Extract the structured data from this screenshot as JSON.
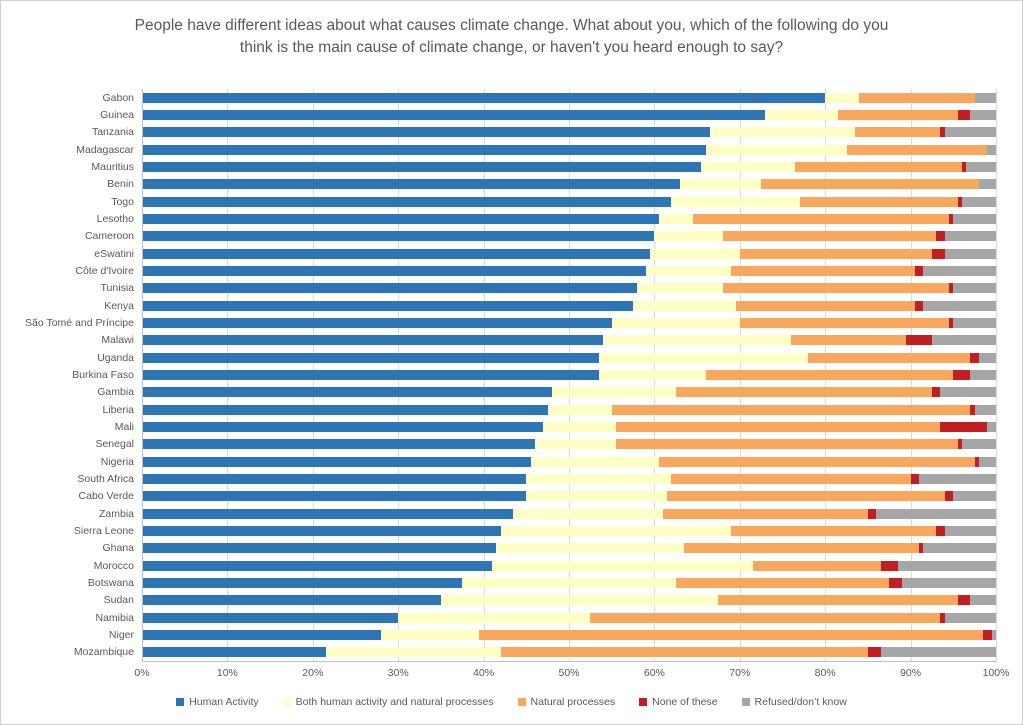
{
  "chart_data": {
    "type": "bar",
    "stacked": true,
    "orientation": "horizontal",
    "title": "People have different ideas about what causes climate change. What about you, which of the following do you think is the main cause of climate change, or haven't you heard enough to say?",
    "xlabel": "",
    "ylabel": "",
    "xlim": [
      0,
      100
    ],
    "x_ticks": [
      "0%",
      "10%",
      "20%",
      "30%",
      "40%",
      "50%",
      "60%",
      "70%",
      "80%",
      "90%",
      "100%"
    ],
    "grid": true,
    "legend_position": "bottom",
    "categories": [
      "Gabon",
      "Guinea",
      "Tanzania",
      "Madagascar",
      "Mauritius",
      "Benin",
      "Togo",
      "Lesotho",
      "Cameroon",
      "eSwatini",
      "Côte d'Ivoire",
      "Tunisia",
      "Kenya",
      "São Tomé and Príncipe",
      "Malawi",
      "Uganda",
      "Burkina Faso",
      "Gambia",
      "Liberia",
      "Mali",
      "Senegal",
      "Nigeria",
      "South Africa",
      "Cabo Verde",
      "Zambia",
      "Sierra Leone",
      "Ghana",
      "Morocco",
      "Botswana",
      "Sudan",
      "Namibia",
      "Niger",
      "Mozambique"
    ],
    "series": [
      {
        "name": "Human Activity",
        "color": "#2E75B6",
        "values": [
          80,
          73,
          66.5,
          66,
          65.5,
          63,
          62,
          60.5,
          60,
          59.5,
          59,
          58,
          57.5,
          55,
          54,
          53.5,
          53.5,
          48,
          47.5,
          47,
          46,
          45.5,
          45,
          45,
          43.5,
          42,
          41.5,
          41,
          37.5,
          35,
          30,
          28,
          21.5
        ]
      },
      {
        "name": "Both human activity and natural processes",
        "color": "#FFFFC5",
        "values": [
          4,
          8.5,
          17,
          16.5,
          11,
          9.5,
          15,
          4,
          8,
          10.5,
          10,
          10,
          12,
          15,
          22,
          24.5,
          12.5,
          14.5,
          7.5,
          8.5,
          9.5,
          15,
          17,
          16.5,
          17.5,
          27,
          22,
          30.5,
          25,
          32.5,
          22.5,
          11.5,
          20.5
        ]
      },
      {
        "name": "Natural processes",
        "color": "#F8A75C",
        "values": [
          13.5,
          14,
          10,
          16.5,
          19.5,
          25.5,
          18.5,
          30,
          25,
          22.5,
          21.5,
          26.5,
          21,
          24.5,
          13.5,
          19,
          29,
          30,
          42,
          38,
          40,
          37,
          28,
          32.5,
          24,
          24,
          27.5,
          15,
          25,
          28,
          41,
          59,
          43
        ]
      },
      {
        "name": "None of these",
        "color": "#C41E25",
        "values": [
          0,
          1.5,
          0.5,
          0,
          0.5,
          0,
          0.5,
          0.5,
          1,
          1.5,
          1,
          0.5,
          1,
          0.5,
          3,
          1,
          2,
          1,
          0.5,
          5.5,
          0.5,
          0.5,
          1,
          1,
          1,
          1,
          0.5,
          2,
          1.5,
          1.5,
          0.5,
          1,
          1.5
        ]
      },
      {
        "name": "Refused/don’t know",
        "color": "#A6A6A6",
        "values": [
          2.5,
          3,
          6,
          1,
          3.5,
          2,
          4,
          5,
          6,
          6,
          8.5,
          5,
          8.5,
          5,
          7.5,
          2,
          3,
          6.5,
          2.5,
          1,
          4,
          2,
          9,
          5,
          14,
          6,
          8.5,
          11.5,
          11,
          3,
          6,
          0.5,
          13.5
        ]
      }
    ],
    "style": {
      "gridline_color": "#D9D9D9",
      "axis_color": "#BFBFBF",
      "text_color": "#595959"
    }
  }
}
